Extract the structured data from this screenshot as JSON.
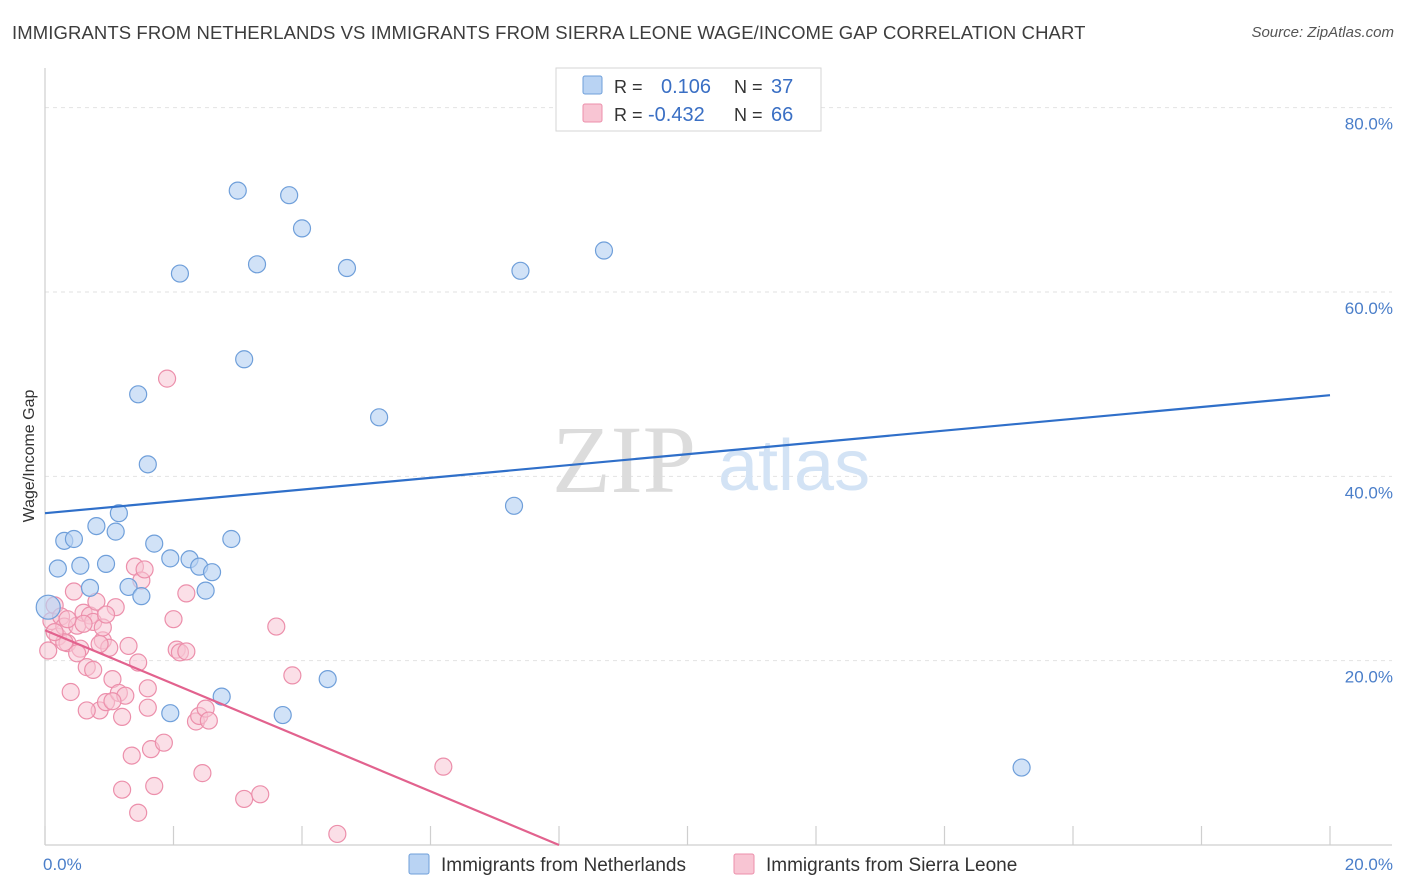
{
  "header": {
    "title": "IMMIGRANTS FROM NETHERLANDS VS IMMIGRANTS FROM SIERRA LEONE WAGE/INCOME GAP CORRELATION CHART",
    "source": "Source: ZipAtlas.com"
  },
  "watermark": {
    "zip": "ZIP",
    "atlas": "atlas"
  },
  "legend": {
    "row1": {
      "r_label": "R =",
      "r_value": "0.106",
      "n_label": "N =",
      "n_value": "37"
    },
    "row2": {
      "r_label": "R =",
      "r_value": "-0.432",
      "n_label": "N =",
      "n_value": "66"
    }
  },
  "colors": {
    "series1_fill": "#b9d3f3",
    "series1_stroke": "#6f9fda",
    "series1_line": "#2f6fc9",
    "series2_fill": "#f8c5d3",
    "series2_stroke": "#ec8fab",
    "series2_line": "#e2628e"
  },
  "chart_data": {
    "type": "scatter",
    "title": "IMMIGRANTS FROM NETHERLANDS VS IMMIGRANTS FROM SIERRA LEONE WAGE/INCOME GAP CORRELATION CHART",
    "xlabel": "",
    "ylabel": "Wage/Income Gap",
    "xlim": [
      0,
      20
    ],
    "ylim": [
      0,
      83
    ],
    "x_ticks": [
      "0.0%",
      "20.0%"
    ],
    "y_ticks": [
      {
        "value": 20,
        "label": "20.0%"
      },
      {
        "value": 40,
        "label": "40.0%"
      },
      {
        "value": 60,
        "label": "60.0%"
      },
      {
        "value": 80,
        "label": "80.0%"
      }
    ],
    "legend": [
      "Immigrants from Netherlands",
      "Immigrants from Sierra Leone"
    ],
    "series": [
      {
        "name": "Immigrants from Netherlands",
        "r": 0.106,
        "n": 37,
        "trend": {
          "x": [
            0,
            20
          ],
          "y": [
            36.0,
            48.8
          ]
        },
        "points": [
          [
            0.05,
            25.8
          ],
          [
            0.2,
            30.0
          ],
          [
            0.3,
            33.0
          ],
          [
            0.45,
            33.2
          ],
          [
            0.55,
            30.3
          ],
          [
            0.7,
            27.9
          ],
          [
            0.8,
            34.6
          ],
          [
            0.95,
            30.5
          ],
          [
            1.1,
            34.0
          ],
          [
            1.15,
            36.0
          ],
          [
            1.3,
            28.0
          ],
          [
            1.45,
            48.9
          ],
          [
            1.5,
            27.0
          ],
          [
            1.6,
            41.3
          ],
          [
            1.7,
            32.7
          ],
          [
            1.95,
            31.1
          ],
          [
            2.1,
            62.0
          ],
          [
            2.25,
            31.0
          ],
          [
            2.4,
            30.2
          ],
          [
            2.5,
            27.6
          ],
          [
            2.6,
            29.6
          ],
          [
            2.75,
            16.1
          ],
          [
            2.9,
            33.2
          ],
          [
            3.0,
            71.0
          ],
          [
            3.1,
            52.7
          ],
          [
            3.3,
            63.0
          ],
          [
            3.7,
            14.1
          ],
          [
            3.8,
            70.5
          ],
          [
            4.0,
            66.9
          ],
          [
            4.4,
            18.0
          ],
          [
            4.7,
            62.6
          ],
          [
            5.2,
            46.4
          ],
          [
            7.3,
            36.8
          ],
          [
            7.4,
            62.3
          ],
          [
            8.7,
            64.5
          ],
          [
            15.2,
            8.4
          ],
          [
            1.95,
            14.3
          ]
        ]
      },
      {
        "name": "Immigrants from Sierra Leone",
        "r": -0.432,
        "n": 66,
        "trend": {
          "x": [
            0,
            8.0
          ],
          "y": [
            23.3,
            0
          ]
        },
        "points": [
          [
            0.05,
            21.1
          ],
          [
            0.1,
            24.3
          ],
          [
            0.15,
            26.0
          ],
          [
            0.2,
            22.6
          ],
          [
            0.25,
            24.8
          ],
          [
            0.3,
            23.7
          ],
          [
            0.35,
            21.9
          ],
          [
            0.4,
            16.6
          ],
          [
            0.45,
            27.5
          ],
          [
            0.5,
            23.8
          ],
          [
            0.55,
            21.3
          ],
          [
            0.6,
            25.2
          ],
          [
            0.65,
            19.3
          ],
          [
            0.7,
            24.9
          ],
          [
            0.75,
            24.2
          ],
          [
            0.8,
            26.4
          ],
          [
            0.85,
            14.6
          ],
          [
            0.9,
            22.2
          ],
          [
            0.95,
            15.5
          ],
          [
            1.0,
            21.4
          ],
          [
            1.05,
            18.0
          ],
          [
            1.1,
            25.8
          ],
          [
            1.15,
            16.5
          ],
          [
            1.2,
            13.9
          ],
          [
            1.25,
            16.2
          ],
          [
            1.3,
            21.6
          ],
          [
            1.35,
            9.7
          ],
          [
            1.4,
            30.2
          ],
          [
            1.45,
            19.8
          ],
          [
            1.5,
            28.7
          ],
          [
            1.55,
            29.9
          ],
          [
            1.6,
            14.9
          ],
          [
            1.65,
            10.4
          ],
          [
            1.7,
            6.4
          ],
          [
            1.85,
            11.1
          ],
          [
            1.9,
            50.6
          ],
          [
            2.0,
            24.5
          ],
          [
            2.05,
            21.2
          ],
          [
            2.1,
            20.9
          ],
          [
            2.2,
            27.3
          ],
          [
            2.35,
            13.4
          ],
          [
            2.4,
            14.0
          ],
          [
            2.45,
            7.8
          ],
          [
            2.5,
            14.8
          ],
          [
            2.55,
            13.5
          ],
          [
            3.1,
            5.0
          ],
          [
            3.35,
            5.5
          ],
          [
            3.6,
            23.7
          ],
          [
            3.85,
            18.4
          ],
          [
            4.55,
            1.2
          ],
          [
            6.2,
            8.5
          ],
          [
            0.6,
            24.0
          ],
          [
            0.9,
            23.6
          ],
          [
            1.2,
            6.0
          ],
          [
            0.3,
            22.0
          ],
          [
            0.5,
            20.8
          ],
          [
            1.05,
            15.6
          ],
          [
            0.15,
            23.1
          ],
          [
            0.75,
            19.0
          ],
          [
            1.45,
            3.5
          ],
          [
            0.65,
            14.6
          ],
          [
            2.2,
            21.0
          ],
          [
            0.35,
            24.5
          ],
          [
            0.85,
            21.8
          ],
          [
            1.6,
            17.0
          ],
          [
            0.95,
            25.0
          ]
        ]
      }
    ]
  }
}
